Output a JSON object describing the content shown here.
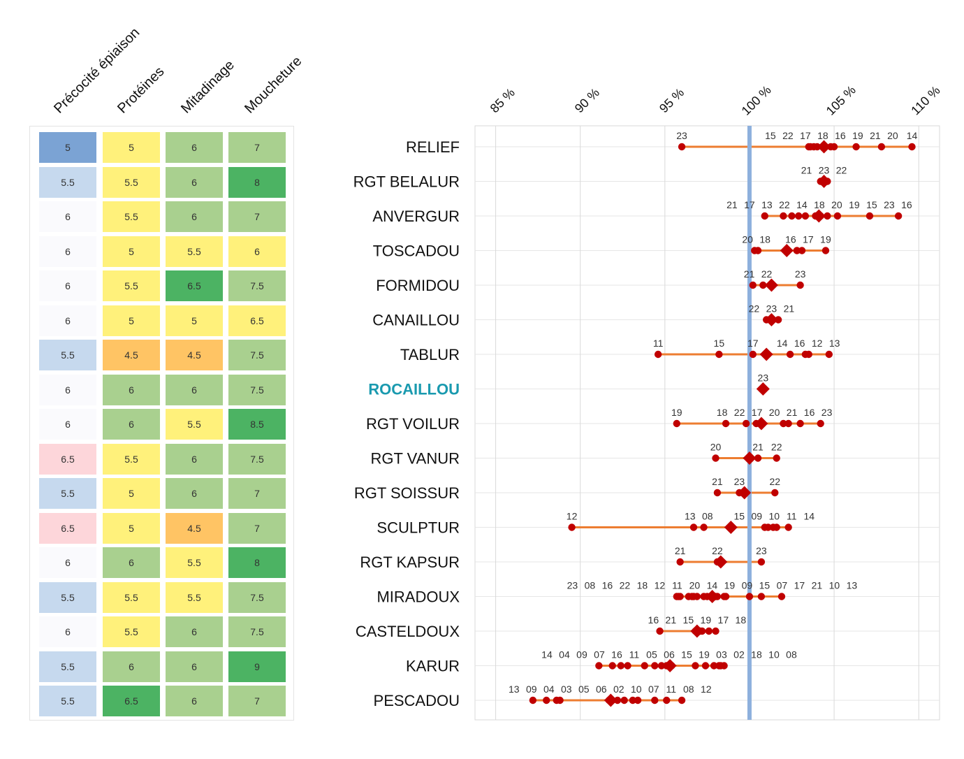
{
  "heatmap": {
    "columns": [
      "Précocité épiaison",
      "Protéines",
      "Mitadinage",
      "Moucheture"
    ],
    "palette": {
      "blue": "#7BA3D4",
      "lightblue": "#C6D9EE",
      "white": "#FAFAFD",
      "pink": "#FDD6DA",
      "yellow": "#FFF17B",
      "orange": "#FFC464",
      "lightgreen": "#A9D08F",
      "green": "#4CB363"
    },
    "rows": [
      [
        {
          "v": "5",
          "c": "blue"
        },
        {
          "v": "5",
          "c": "yellow"
        },
        {
          "v": "6",
          "c": "lightgreen"
        },
        {
          "v": "7",
          "c": "lightgreen"
        }
      ],
      [
        {
          "v": "5.5",
          "c": "lightblue"
        },
        {
          "v": "5.5",
          "c": "yellow"
        },
        {
          "v": "6",
          "c": "lightgreen"
        },
        {
          "v": "8",
          "c": "green"
        }
      ],
      [
        {
          "v": "6",
          "c": "white"
        },
        {
          "v": "5.5",
          "c": "yellow"
        },
        {
          "v": "6",
          "c": "lightgreen"
        },
        {
          "v": "7",
          "c": "lightgreen"
        }
      ],
      [
        {
          "v": "6",
          "c": "white"
        },
        {
          "v": "5",
          "c": "yellow"
        },
        {
          "v": "5.5",
          "c": "yellow"
        },
        {
          "v": "6",
          "c": "yellow"
        }
      ],
      [
        {
          "v": "6",
          "c": "white"
        },
        {
          "v": "5.5",
          "c": "yellow"
        },
        {
          "v": "6.5",
          "c": "green"
        },
        {
          "v": "7.5",
          "c": "lightgreen"
        }
      ],
      [
        {
          "v": "6",
          "c": "white"
        },
        {
          "v": "5",
          "c": "yellow"
        },
        {
          "v": "5",
          "c": "yellow"
        },
        {
          "v": "6.5",
          "c": "yellow"
        }
      ],
      [
        {
          "v": "5.5",
          "c": "lightblue"
        },
        {
          "v": "4.5",
          "c": "orange"
        },
        {
          "v": "4.5",
          "c": "orange"
        },
        {
          "v": "7.5",
          "c": "lightgreen"
        }
      ],
      [
        {
          "v": "6",
          "c": "white"
        },
        {
          "v": "6",
          "c": "lightgreen"
        },
        {
          "v": "6",
          "c": "lightgreen"
        },
        {
          "v": "7.5",
          "c": "lightgreen"
        }
      ],
      [
        {
          "v": "6",
          "c": "white"
        },
        {
          "v": "6",
          "c": "lightgreen"
        },
        {
          "v": "5.5",
          "c": "yellow"
        },
        {
          "v": "8.5",
          "c": "green"
        }
      ],
      [
        {
          "v": "6.5",
          "c": "pink"
        },
        {
          "v": "5.5",
          "c": "yellow"
        },
        {
          "v": "6",
          "c": "lightgreen"
        },
        {
          "v": "7.5",
          "c": "lightgreen"
        }
      ],
      [
        {
          "v": "5.5",
          "c": "lightblue"
        },
        {
          "v": "5",
          "c": "yellow"
        },
        {
          "v": "6",
          "c": "lightgreen"
        },
        {
          "v": "7",
          "c": "lightgreen"
        }
      ],
      [
        {
          "v": "6.5",
          "c": "pink"
        },
        {
          "v": "5",
          "c": "yellow"
        },
        {
          "v": "4.5",
          "c": "orange"
        },
        {
          "v": "7",
          "c": "lightgreen"
        }
      ],
      [
        {
          "v": "6",
          "c": "white"
        },
        {
          "v": "6",
          "c": "lightgreen"
        },
        {
          "v": "5.5",
          "c": "yellow"
        },
        {
          "v": "8",
          "c": "green"
        }
      ],
      [
        {
          "v": "5.5",
          "c": "lightblue"
        },
        {
          "v": "5.5",
          "c": "yellow"
        },
        {
          "v": "5.5",
          "c": "yellow"
        },
        {
          "v": "7.5",
          "c": "lightgreen"
        }
      ],
      [
        {
          "v": "6",
          "c": "white"
        },
        {
          "v": "5.5",
          "c": "yellow"
        },
        {
          "v": "6",
          "c": "lightgreen"
        },
        {
          "v": "7.5",
          "c": "lightgreen"
        }
      ],
      [
        {
          "v": "5.5",
          "c": "lightblue"
        },
        {
          "v": "6",
          "c": "lightgreen"
        },
        {
          "v": "6",
          "c": "lightgreen"
        },
        {
          "v": "9",
          "c": "green"
        }
      ],
      [
        {
          "v": "5.5",
          "c": "lightblue"
        },
        {
          "v": "6.5",
          "c": "green"
        },
        {
          "v": "6",
          "c": "lightgreen"
        },
        {
          "v": "7",
          "c": "lightgreen"
        }
      ]
    ]
  },
  "chart_data": {
    "type": "scatter",
    "subtype": "dot-range-by-category",
    "title": "",
    "xlabel": "",
    "ylabel": "",
    "x_ticks": [
      "85 %",
      "90 %",
      "95 %",
      "100 %",
      "105 %",
      "110 %"
    ],
    "x_tick_values": [
      85,
      90,
      95,
      100,
      105,
      110
    ],
    "xlim": [
      83.78,
      111.23
    ],
    "x_axis_position": "top",
    "grid": true,
    "legend": "none",
    "reference_value": 100,
    "colors": {
      "reference_line": "#8DB0DD",
      "points": "#C00000",
      "mean_marker": "#C00000",
      "range_line": "#ED7D31",
      "highlight_label": "#1A9AAF",
      "label": "#111111",
      "year_label": "#333333"
    },
    "series": [
      {
        "name": "RELIEF",
        "mean": 104.4,
        "points": [
          {
            "label": "23",
            "value": 96.0
          },
          {
            "label": "15",
            "value": 103.5
          },
          {
            "label": "22",
            "value": 103.6
          },
          {
            "label": "17",
            "value": 103.8
          },
          {
            "label": "18",
            "value": 104.0
          },
          {
            "label": "16",
            "value": 104.8
          },
          {
            "label": "19",
            "value": 105.0
          },
          {
            "label": "21",
            "value": 106.3
          },
          {
            "label": "20",
            "value": 107.8
          },
          {
            "label": "14",
            "value": 109.6
          }
        ]
      },
      {
        "name": "RGT BELALUR",
        "mean": 104.4,
        "points": [
          {
            "label": "21",
            "value": 104.2
          },
          {
            "label": "23",
            "value": 104.4
          },
          {
            "label": "22",
            "value": 104.6
          }
        ]
      },
      {
        "name": "ANVERGUR",
        "mean": 104.1,
        "points": [
          {
            "label": "21",
            "value": 100.9
          },
          {
            "label": "17",
            "value": 102.0
          },
          {
            "label": "13",
            "value": 102.5
          },
          {
            "label": "22",
            "value": 102.9
          },
          {
            "label": "14",
            "value": 103.3
          },
          {
            "label": "18",
            "value": 103.9
          },
          {
            "label": "20",
            "value": 104.2
          },
          {
            "label": "19",
            "value": 104.6
          },
          {
            "label": "15",
            "value": 105.2
          },
          {
            "label": "23",
            "value": 107.1
          },
          {
            "label": "16",
            "value": 108.8
          }
        ]
      },
      {
        "name": "TOSCADOU",
        "mean": 102.2,
        "points": [
          {
            "label": "20",
            "value": 100.3
          },
          {
            "label": "18",
            "value": 100.5
          },
          {
            "label": "16",
            "value": 102.8
          },
          {
            "label": "17",
            "value": 103.1
          },
          {
            "label": "19",
            "value": 104.5
          }
        ]
      },
      {
        "name": "FORMIDOU",
        "mean": 101.3,
        "points": [
          {
            "label": "21",
            "value": 100.2
          },
          {
            "label": "22",
            "value": 100.8
          },
          {
            "label": "23",
            "value": 103.0
          }
        ]
      },
      {
        "name": "CANAILLOU",
        "mean": 101.3,
        "points": [
          {
            "label": "22",
            "value": 101.0
          },
          {
            "label": "23",
            "value": 101.2
          },
          {
            "label": "21",
            "value": 101.7
          }
        ]
      },
      {
        "name": "TABLUR",
        "mean": 101.0,
        "points": [
          {
            "label": "11",
            "value": 94.6
          },
          {
            "label": "15",
            "value": 98.2
          },
          {
            "label": "17",
            "value": 100.2
          },
          {
            "label": "14",
            "value": 102.4
          },
          {
            "label": "16",
            "value": 103.3
          },
          {
            "label": "12",
            "value": 103.5
          },
          {
            "label": "13",
            "value": 104.7
          }
        ]
      },
      {
        "name": "ROCAILLOU",
        "highlight": true,
        "mean": 100.8,
        "points": [
          {
            "label": "23",
            "value": 100.8
          }
        ]
      },
      {
        "name": "RGT VOILUR",
        "mean": 100.7,
        "points": [
          {
            "label": "19",
            "value": 95.7
          },
          {
            "label": "18",
            "value": 98.6
          },
          {
            "label": "22",
            "value": 99.8
          },
          {
            "label": "17",
            "value": 100.4
          },
          {
            "label": "20",
            "value": 102.0
          },
          {
            "label": "21",
            "value": 102.3
          },
          {
            "label": "16",
            "value": 103.0
          },
          {
            "label": "23",
            "value": 104.2
          }
        ]
      },
      {
        "name": "RGT VANUR",
        "mean": 100.0,
        "points": [
          {
            "label": "20",
            "value": 98.0
          },
          {
            "label": "21",
            "value": 100.5
          },
          {
            "label": "22",
            "value": 101.6
          }
        ]
      },
      {
        "name": "RGT SOISSUR",
        "mean": 99.7,
        "points": [
          {
            "label": "21",
            "value": 98.1
          },
          {
            "label": "23",
            "value": 99.4
          },
          {
            "label": "22",
            "value": 101.5
          }
        ]
      },
      {
        "name": "SCULPTUR",
        "mean": 98.9,
        "points": [
          {
            "label": "12",
            "value": 89.5
          },
          {
            "label": "13",
            "value": 96.7
          },
          {
            "label": "08",
            "value": 97.3
          },
          {
            "label": "15",
            "value": 100.9
          },
          {
            "label": "09",
            "value": 101.1
          },
          {
            "label": "10",
            "value": 101.4
          },
          {
            "label": "11",
            "value": 101.6
          },
          {
            "label": "14",
            "value": 102.3
          }
        ]
      },
      {
        "name": "RGT KAPSUR",
        "mean": 98.3,
        "points": [
          {
            "label": "21",
            "value": 95.9
          },
          {
            "label": "22",
            "value": 98.1
          },
          {
            "label": "23",
            "value": 100.7
          }
        ]
      },
      {
        "name": "MIRADOUX",
        "mean": 97.8,
        "points": [
          {
            "label": "23",
            "value": 95.7
          },
          {
            "label": "08",
            "value": 95.8
          },
          {
            "label": "16",
            "value": 95.9
          },
          {
            "label": "22",
            "value": 96.4
          },
          {
            "label": "18",
            "value": 96.6
          },
          {
            "label": "12",
            "value": 96.7
          },
          {
            "label": "11",
            "value": 96.9
          },
          {
            "label": "20",
            "value": 97.3
          },
          {
            "label": "14",
            "value": 97.5
          },
          {
            "label": "19",
            "value": 97.8
          },
          {
            "label": "09",
            "value": 98.0
          },
          {
            "label": "15",
            "value": 98.1
          },
          {
            "label": "07",
            "value": 98.5
          },
          {
            "label": "17",
            "value": 98.6
          },
          {
            "label": "21",
            "value": 100.0
          },
          {
            "label": "10",
            "value": 100.7
          },
          {
            "label": "13",
            "value": 101.9
          }
        ]
      },
      {
        "name": "CASTELDOUX",
        "mean": 96.9,
        "points": [
          {
            "label": "16",
            "value": 94.7
          },
          {
            "label": "21",
            "value": 96.8
          },
          {
            "label": "15",
            "value": 97.1
          },
          {
            "label": "19",
            "value": 97.2
          },
          {
            "label": "17",
            "value": 97.6
          },
          {
            "label": "18",
            "value": 98.0
          }
        ]
      },
      {
        "name": "KARUR",
        "mean": 95.3,
        "points": [
          {
            "label": "14",
            "value": 91.1
          },
          {
            "label": "04",
            "value": 91.9
          },
          {
            "label": "09",
            "value": 92.4
          },
          {
            "label": "07",
            "value": 92.8
          },
          {
            "label": "16",
            "value": 93.8
          },
          {
            "label": "11",
            "value": 94.4
          },
          {
            "label": "05",
            "value": 94.8
          },
          {
            "label": "06",
            "value": 95.1
          },
          {
            "label": "15",
            "value": 95.4
          },
          {
            "label": "19",
            "value": 96.8
          },
          {
            "label": "03",
            "value": 97.4
          },
          {
            "label": "02",
            "value": 97.9
          },
          {
            "label": "18",
            "value": 98.2
          },
          {
            "label": "10",
            "value": 98.3
          },
          {
            "label": "08",
            "value": 98.5
          }
        ]
      },
      {
        "name": "PESCADOU",
        "mean": 91.8,
        "points": [
          {
            "label": "13",
            "value": 87.2
          },
          {
            "label": "09",
            "value": 88.0
          },
          {
            "label": "04",
            "value": 88.6
          },
          {
            "label": "03",
            "value": 88.8
          },
          {
            "label": "05",
            "value": 91.7
          },
          {
            "label": "06",
            "value": 92.2
          },
          {
            "label": "02",
            "value": 92.6
          },
          {
            "label": "10",
            "value": 93.1
          },
          {
            "label": "07",
            "value": 93.4
          },
          {
            "label": "11",
            "value": 94.4
          },
          {
            "label": "08",
            "value": 95.1
          },
          {
            "label": "12",
            "value": 96.0
          }
        ]
      }
    ]
  }
}
